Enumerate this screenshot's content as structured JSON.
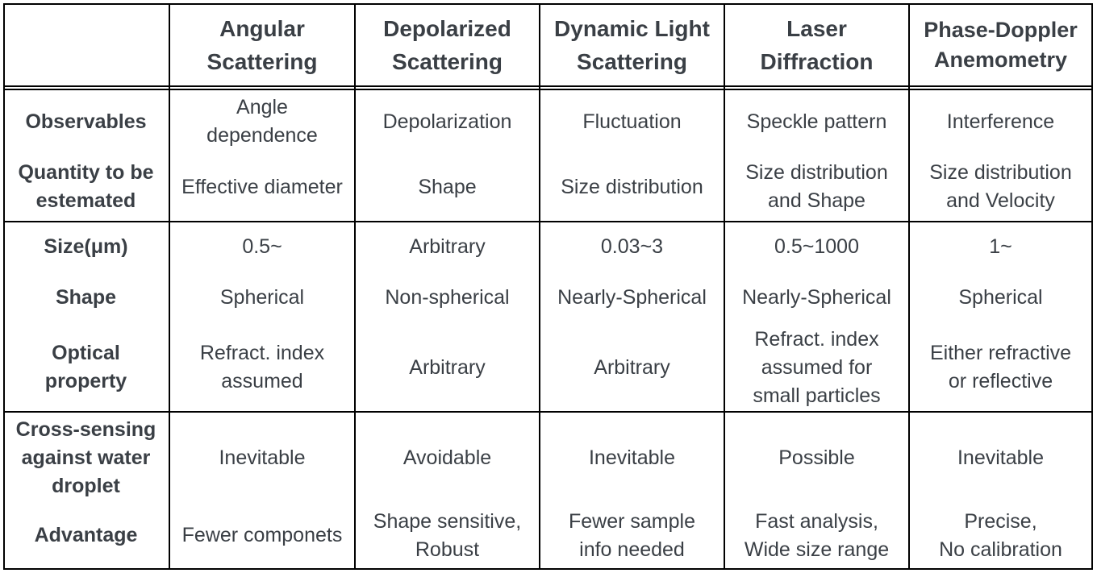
{
  "header": [
    "Angular\nScattering",
    "Depolarized\nScattering",
    "Dynamic Light\nScattering",
    "Laser\nDiffraction",
    "Phase-Doppler\nAnemometry"
  ],
  "rows": [
    {
      "label": "Observables",
      "cells": [
        "Angle\ndependence",
        "Depolarization",
        "Fluctuation",
        "Speckle pattern",
        "Interference"
      ]
    },
    {
      "label": "Quantity to be\nestemated",
      "cells": [
        "Effective diameter",
        "Shape",
        "Size distribution",
        "Size distribution\nand Shape",
        "Size distribution\nand Velocity"
      ]
    },
    {
      "label": "Size(μm)",
      "cells": [
        "0.5~",
        "Arbitrary",
        "0.03~3",
        "0.5~1000",
        "1~"
      ]
    },
    {
      "label": "Shape",
      "cells": [
        "Spherical",
        "Non-spherical",
        "Nearly-Spherical",
        "Nearly-Spherical",
        "Spherical"
      ]
    },
    {
      "label": "Optical\nproperty",
      "cells": [
        "Refract. index\nassumed",
        "Arbitrary",
        "Arbitrary",
        "Refract. index\nassumed for\nsmall particles",
        "Either refractive\nor reflective"
      ]
    },
    {
      "label": "Cross-sensing\nagainst water\ndroplet",
      "cells": [
        "Inevitable",
        "Avoidable",
        "Inevitable",
        "Possible",
        "Inevitable"
      ]
    },
    {
      "label": "Advantage",
      "cells": [
        "Fewer componets",
        "Shape sensitive,\nRobust",
        "Fewer sample\ninfo needed",
        "Fast analysis,\nWide size range",
        "Precise,\nNo calibration"
      ]
    }
  ]
}
